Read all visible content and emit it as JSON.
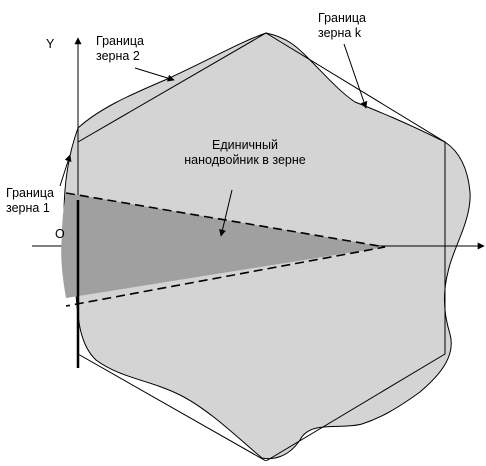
{
  "axes": {
    "x_arrow": "→",
    "y_label": "Y",
    "origin_label": "O"
  },
  "labels": {
    "grain_1": [
      "Граница",
      "зерна 1"
    ],
    "grain_2": [
      "Граница",
      "зерна 2"
    ],
    "grain_k": [
      "Граница",
      "зерна k"
    ],
    "twin": [
      "Единичный",
      "нанодвойник в зерне"
    ]
  },
  "colors": {
    "grain_fill": "#d4d4d4",
    "twin_fill": "#a0a0a0",
    "line": "#000000",
    "background": "#ffffff"
  }
}
